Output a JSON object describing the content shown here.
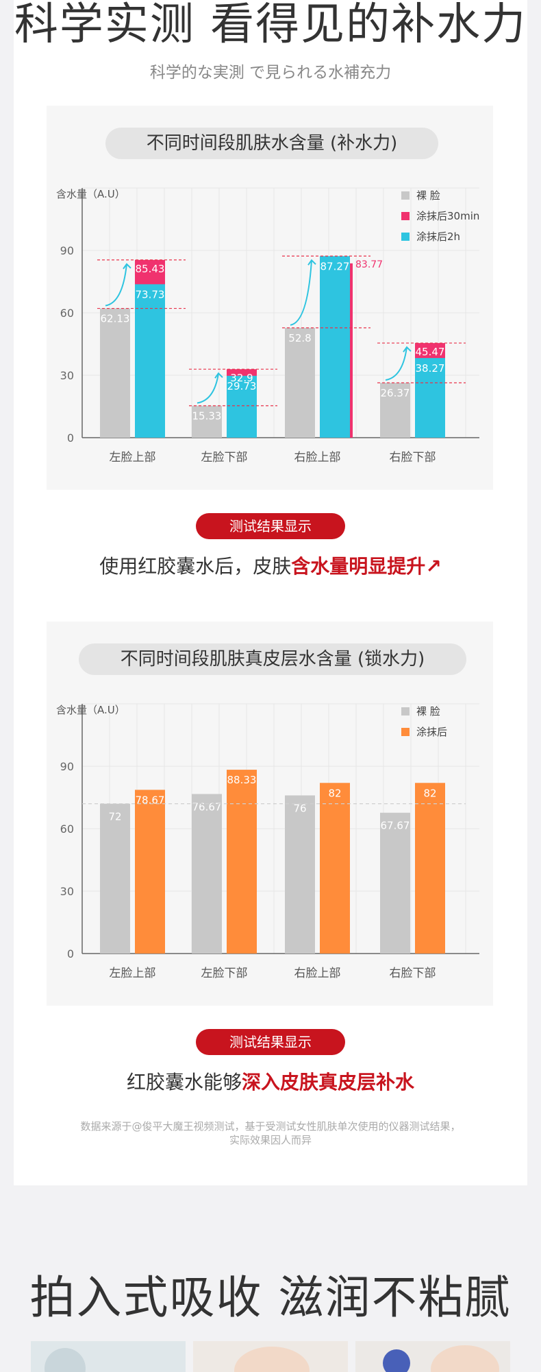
{
  "header": {
    "title": "科学实测 看得见的补水力",
    "subtitle": "科学的な実測 で見られる水補充力"
  },
  "chart1": {
    "title": "不同时间段肌肤水含量 (补水力)",
    "ylabel": "含水量（A.U）",
    "yticks": [
      "0",
      "30",
      "60",
      "90"
    ],
    "legend": [
      "裸 脸",
      "涂抹后30min",
      "涂抹后2h"
    ],
    "colors": [
      "#c8c8c8",
      "#f0326e",
      "#2ec4e0"
    ]
  },
  "chart2": {
    "title": "不同时间段肌肤真皮层水含量 (锁水力)",
    "ylabel": "含水量（A.U）",
    "yticks": [
      "0",
      "30",
      "60",
      "90"
    ],
    "legend": [
      "裸 脸",
      "涂抹后"
    ],
    "colors": [
      "#c8c8c8",
      "#ff8c3a"
    ]
  },
  "chart_data": [
    {
      "type": "bar",
      "title": "不同时间段肌肤水含量 (补水力)",
      "ylabel": "含水量（A.U）",
      "ylim": [
        0,
        120
      ],
      "categories": [
        "左脸上部",
        "左脸下部",
        "右脸上部",
        "右脸下部"
      ],
      "series": [
        {
          "name": "裸 脸",
          "values": [
            62.13,
            15.33,
            52.8,
            26.37
          ]
        },
        {
          "name": "涂抹后30min",
          "values": [
            85.43,
            32.9,
            83.77,
            45.47
          ]
        },
        {
          "name": "涂抹后2h",
          "values": [
            73.73,
            29.73,
            87.27,
            38.27
          ]
        }
      ],
      "legend_position": "top-right",
      "grid": true
    },
    {
      "type": "bar",
      "title": "不同时间段肌肤真皮层水含量 (锁水力)",
      "ylabel": "含水量（A.U）",
      "ylim": [
        0,
        120
      ],
      "categories": [
        "左脸上部",
        "左脸下部",
        "右脸上部",
        "右脸下部"
      ],
      "series": [
        {
          "name": "裸 脸",
          "values": [
            72,
            76.67,
            76,
            67.67
          ]
        },
        {
          "name": "涂抹后",
          "values": [
            78.67,
            88.33,
            82,
            82
          ]
        }
      ],
      "legend_position": "top-right",
      "grid": true
    }
  ],
  "result1": {
    "badge": "测试结果显示",
    "text_plain": "使用红胶囊水后，皮肤",
    "text_highlight": "含水量明显提升",
    "arrow": "↗"
  },
  "result2": {
    "badge": "测试结果显示",
    "text_plain": "红胶囊水能够",
    "text_highlight": "深入皮肤真皮层补水"
  },
  "footnote": {
    "line1": "数据来源于@俊平大魔王视频测试，基于受测试女性肌肤单次使用的仪器测试结果，",
    "line2": "实际效果因人而异"
  },
  "section2": {
    "title": "拍入式吸收 滋润不粘腻"
  }
}
